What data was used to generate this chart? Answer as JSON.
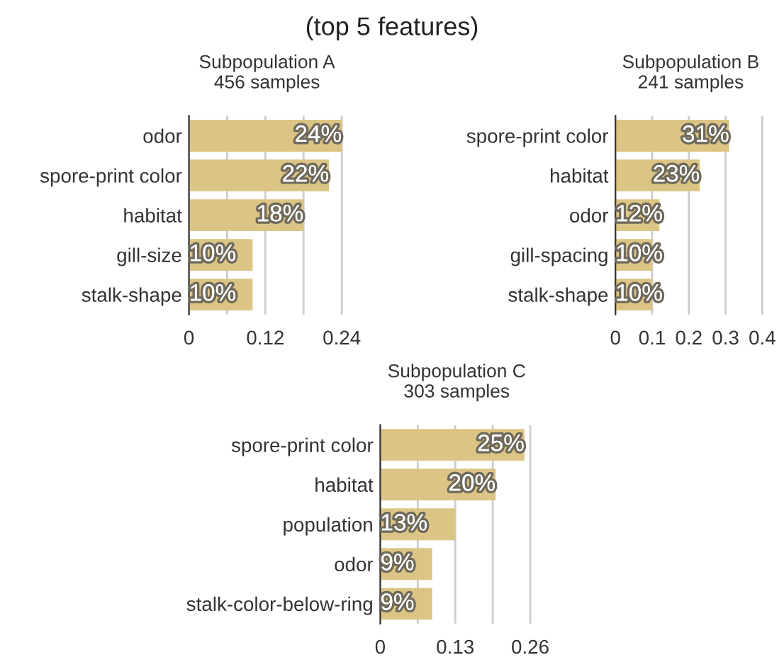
{
  "chart_data": [
    {
      "type": "bar",
      "orientation": "horizontal",
      "title": "Subpopulation A",
      "subtitle": "456 samples",
      "annotations": [
        "(top 5 features)"
      ],
      "categories": [
        "odor",
        "spore-print color",
        "habitat",
        "gill-size",
        "stalk-shape"
      ],
      "values": [
        0.24,
        0.22,
        0.18,
        0.1,
        0.1
      ],
      "value_labels": [
        "24%",
        "22%",
        "18%",
        "10%",
        "10%"
      ],
      "color": "#dcc584",
      "xlim": [
        0,
        0.245
      ],
      "xticks": [
        0,
        {
          "value": 0.06,
          "label": null
        },
        0.12,
        {
          "value": 0.18,
          "label": null
        },
        0.24
      ],
      "grid": "x"
    },
    {
      "type": "bar",
      "orientation": "horizontal",
      "title": "Subpopulation B",
      "subtitle": "241 samples",
      "categories": [
        "spore-print color",
        "habitat",
        "odor",
        "gill-spacing",
        "stalk-shape"
      ],
      "values": [
        0.31,
        0.23,
        0.12,
        0.1,
        0.1
      ],
      "value_labels": [
        "31%",
        "23%",
        "12%",
        "10%",
        "10%"
      ],
      "color": "#dcc584",
      "xlim": [
        0,
        0.41
      ],
      "xticks": [
        0,
        0.1,
        0.2,
        0.3,
        0.4
      ],
      "grid": "x"
    },
    {
      "type": "bar",
      "orientation": "horizontal",
      "title": "Subpopulation C",
      "subtitle": "303 samples",
      "categories": [
        "spore-print color",
        "habitat",
        "population",
        "odor",
        "stalk-color-below-ring"
      ],
      "values": [
        0.25,
        0.2,
        0.13,
        0.09,
        0.09
      ],
      "value_labels": [
        "25%",
        "20%",
        "13%",
        "9%",
        "9%"
      ],
      "color": "#dcc584",
      "xlim": [
        0,
        0.265
      ],
      "xticks": [
        0,
        {
          "value": 0.065,
          "label": null
        },
        0.13,
        {
          "value": 0.195,
          "label": null
        },
        0.26
      ],
      "grid": "x"
    }
  ]
}
